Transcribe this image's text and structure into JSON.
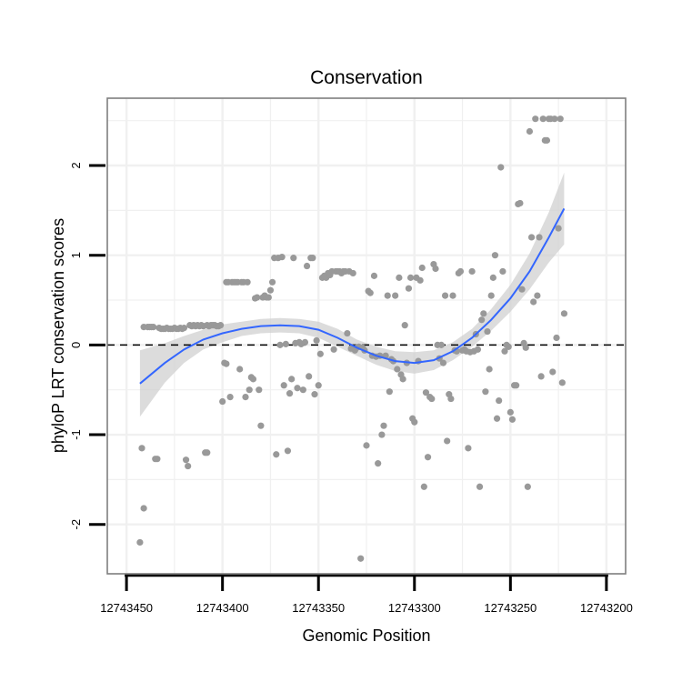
{
  "chart_data": {
    "type": "scatter",
    "title": "Conservation",
    "xlabel": "Genomic Position",
    "ylabel": "phyloP LRT conservation scores",
    "x_reversed": true,
    "xlim": [
      12743460,
      12743190
    ],
    "ylim": [
      -2.55,
      2.75
    ],
    "x_ticks": [
      12743450,
      12743400,
      12743350,
      12743300,
      12743250,
      12743200
    ],
    "x_tick_labels": [
      "12743450",
      "12743400",
      "12743350",
      "12743300",
      "12743250",
      "12743200"
    ],
    "y_ticks": [
      -2,
      -1,
      0,
      1,
      2
    ],
    "y_tick_labels": [
      "-2",
      "-1",
      "0",
      "1",
      "2"
    ],
    "grid": true,
    "reference_line": {
      "y": 0,
      "style": "dashed",
      "color": "#000000"
    },
    "colors": {
      "points": "#999999",
      "smooth": "#3366ff",
      "band": "#d0d0d0",
      "grid": "#f0f0f0",
      "frame": "#7f7f7f"
    },
    "series": [
      {
        "kind": "points",
        "points": [
          [
            12743443,
            -2.2
          ],
          [
            12743442,
            -1.15
          ],
          [
            12743441,
            -1.82
          ],
          [
            12743441,
            0.2
          ],
          [
            12743439,
            0.2
          ],
          [
            12743438,
            0.2
          ],
          [
            12743437,
            0.2
          ],
          [
            12743436,
            0.2
          ],
          [
            12743435,
            -1.27
          ],
          [
            12743434,
            -1.27
          ],
          [
            12743433,
            0.19
          ],
          [
            12743432,
            0.18
          ],
          [
            12743431,
            0.18
          ],
          [
            12743430,
            0.18
          ],
          [
            12743429,
            0.19
          ],
          [
            12743428,
            0.18
          ],
          [
            12743427,
            0.18
          ],
          [
            12743426,
            0.18
          ],
          [
            12743425,
            0.19
          ],
          [
            12743424,
            0.18
          ],
          [
            12743423,
            0.18
          ],
          [
            12743422,
            0.19
          ],
          [
            12743421,
            0.18
          ],
          [
            12743420,
            0.19
          ],
          [
            12743419,
            -1.28
          ],
          [
            12743418,
            -1.35
          ],
          [
            12743417,
            0.22
          ],
          [
            12743416,
            0.21
          ],
          [
            12743415,
            0.22
          ],
          [
            12743414,
            0.21
          ],
          [
            12743413,
            0.22
          ],
          [
            12743412,
            0.21
          ],
          [
            12743411,
            0.22
          ],
          [
            12743410,
            0.21
          ],
          [
            12743409,
            -1.2
          ],
          [
            12743408,
            -1.2
          ],
          [
            12743408,
            0.22
          ],
          [
            12743407,
            0.21
          ],
          [
            12743406,
            0.22
          ],
          [
            12743405,
            0.22
          ],
          [
            12743404,
            0.22
          ],
          [
            12743403,
            0.21
          ],
          [
            12743402,
            0.21
          ],
          [
            12743401,
            0.22
          ],
          [
            12743400,
            -0.63
          ],
          [
            12743399,
            -0.2
          ],
          [
            12743398,
            -0.21
          ],
          [
            12743398,
            0.7
          ],
          [
            12743397,
            0.7
          ],
          [
            12743396,
            -0.58
          ],
          [
            12743395,
            0.7
          ],
          [
            12743394,
            0.7
          ],
          [
            12743393,
            0.7
          ],
          [
            12743392,
            0.7
          ],
          [
            12743391,
            -0.27
          ],
          [
            12743390,
            0.7
          ],
          [
            12743389,
            0.7
          ],
          [
            12743388,
            -0.58
          ],
          [
            12743387,
            0.7
          ],
          [
            12743386,
            -0.5
          ],
          [
            12743385,
            -0.36
          ],
          [
            12743384,
            -0.38
          ],
          [
            12743383,
            0.52
          ],
          [
            12743382,
            0.53
          ],
          [
            12743381,
            -0.5
          ],
          [
            12743380,
            -0.9
          ],
          [
            12743379,
            0.53
          ],
          [
            12743378,
            0.55
          ],
          [
            12743377,
            0.53
          ],
          [
            12743376,
            0.53
          ],
          [
            12743375,
            0.61
          ],
          [
            12743374,
            0.7
          ],
          [
            12743373,
            0.97
          ],
          [
            12743372,
            -1.22
          ],
          [
            12743371,
            0.97
          ],
          [
            12743370,
            0.0
          ],
          [
            12743369,
            0.98
          ],
          [
            12743368,
            -0.45
          ],
          [
            12743367,
            0.01
          ],
          [
            12743366,
            -1.18
          ],
          [
            12743365,
            -0.54
          ],
          [
            12743364,
            -0.38
          ],
          [
            12743363,
            0.97
          ],
          [
            12743362,
            0.02
          ],
          [
            12743361,
            -0.48
          ],
          [
            12743360,
            0.03
          ],
          [
            12743359,
            0.01
          ],
          [
            12743358,
            -0.5
          ],
          [
            12743357,
            0.03
          ],
          [
            12743356,
            0.88
          ],
          [
            12743355,
            -0.35
          ],
          [
            12743354,
            0.97
          ],
          [
            12743353,
            0.97
          ],
          [
            12743352,
            -0.55
          ],
          [
            12743351,
            0.05
          ],
          [
            12743350,
            -0.45
          ],
          [
            12743349,
            -0.1
          ],
          [
            12743348,
            0.75
          ],
          [
            12743347,
            0.77
          ],
          [
            12743346,
            0.75
          ],
          [
            12743345,
            0.8
          ],
          [
            12743344,
            0.78
          ],
          [
            12743343,
            0.82
          ],
          [
            12743342,
            -0.05
          ],
          [
            12743341,
            0.82
          ],
          [
            12743340,
            0.82
          ],
          [
            12743339,
            0.82
          ],
          [
            12743338,
            0.8
          ],
          [
            12743337,
            0.82
          ],
          [
            12743336,
            0.82
          ],
          [
            12743335,
            0.13
          ],
          [
            12743334,
            0.82
          ],
          [
            12743333,
            -0.04
          ],
          [
            12743332,
            0.8
          ],
          [
            12743331,
            -0.06
          ],
          [
            12743330,
            -0.03
          ],
          [
            12743329,
            -0.02
          ],
          [
            12743328,
            -2.38
          ],
          [
            12743327,
            -0.03
          ],
          [
            12743326,
            -0.06
          ],
          [
            12743325,
            -1.12
          ],
          [
            12743324,
            0.6
          ],
          [
            12743323,
            0.58
          ],
          [
            12743322,
            -0.12
          ],
          [
            12743321,
            0.77
          ],
          [
            12743320,
            -0.13
          ],
          [
            12743319,
            -1.32
          ],
          [
            12743318,
            -0.12
          ],
          [
            12743317,
            -1.0
          ],
          [
            12743316,
            -0.9
          ],
          [
            12743315,
            -0.12
          ],
          [
            12743314,
            0.55
          ],
          [
            12743313,
            -0.52
          ],
          [
            12743312,
            -0.16
          ],
          [
            12743311,
            -0.18
          ],
          [
            12743310,
            0.55
          ],
          [
            12743309,
            -0.27
          ],
          [
            12743308,
            0.75
          ],
          [
            12743307,
            -0.33
          ],
          [
            12743306,
            -0.38
          ],
          [
            12743305,
            0.22
          ],
          [
            12743304,
            -0.2
          ],
          [
            12743303,
            0.63
          ],
          [
            12743302,
            0.75
          ],
          [
            12743301,
            -0.82
          ],
          [
            12743300,
            -0.86
          ],
          [
            12743299,
            0.75
          ],
          [
            12743298,
            -0.18
          ],
          [
            12743297,
            0.72
          ],
          [
            12743296,
            0.86
          ],
          [
            12743295,
            -1.58
          ],
          [
            12743294,
            -0.53
          ],
          [
            12743293,
            -1.25
          ],
          [
            12743292,
            -0.58
          ],
          [
            12743291,
            -0.6
          ],
          [
            12743290,
            0.9
          ],
          [
            12743289,
            0.85
          ],
          [
            12743288,
            0.0
          ],
          [
            12743287,
            -0.15
          ],
          [
            12743286,
            0.0
          ],
          [
            12743285,
            -0.2
          ],
          [
            12743284,
            0.55
          ],
          [
            12743283,
            -1.07
          ],
          [
            12743282,
            -0.55
          ],
          [
            12743281,
            -0.6
          ],
          [
            12743280,
            0.55
          ],
          [
            12743279,
            -0.06
          ],
          [
            12743278,
            -0.07
          ],
          [
            12743277,
            0.8
          ],
          [
            12743276,
            0.82
          ],
          [
            12743275,
            -0.06
          ],
          [
            12743274,
            -0.05
          ],
          [
            12743273,
            -0.07
          ],
          [
            12743272,
            -1.15
          ],
          [
            12743271,
            -0.08
          ],
          [
            12743270,
            0.82
          ],
          [
            12743269,
            -0.07
          ],
          [
            12743268,
            0.12
          ],
          [
            12743267,
            -0.05
          ],
          [
            12743266,
            -1.58
          ],
          [
            12743265,
            0.28
          ],
          [
            12743264,
            0.35
          ],
          [
            12743263,
            -0.52
          ],
          [
            12743262,
            0.15
          ],
          [
            12743261,
            -0.27
          ],
          [
            12743260,
            0.55
          ],
          [
            12743259,
            0.75
          ],
          [
            12743258,
            1.0
          ],
          [
            12743257,
            -0.82
          ],
          [
            12743256,
            -0.62
          ],
          [
            12743255,
            1.98
          ],
          [
            12743254,
            0.82
          ],
          [
            12743253,
            -0.07
          ],
          [
            12743252,
            0.0
          ],
          [
            12743251,
            -0.02
          ],
          [
            12743250,
            -0.75
          ],
          [
            12743249,
            -0.83
          ],
          [
            12743248,
            -0.45
          ],
          [
            12743247,
            -0.45
          ],
          [
            12743246,
            1.57
          ],
          [
            12743245,
            1.58
          ],
          [
            12743244,
            0.62
          ],
          [
            12743243,
            0.02
          ],
          [
            12743242,
            -0.03
          ],
          [
            12743241,
            -1.58
          ],
          [
            12743240,
            2.38
          ],
          [
            12743239,
            1.2
          ],
          [
            12743238,
            0.48
          ],
          [
            12743237,
            2.52
          ],
          [
            12743236,
            0.55
          ],
          [
            12743235,
            1.2
          ],
          [
            12743234,
            -0.35
          ],
          [
            12743233,
            2.52
          ],
          [
            12743232,
            2.28
          ],
          [
            12743231,
            2.28
          ],
          [
            12743230,
            2.52
          ],
          [
            12743229,
            2.52
          ],
          [
            12743228,
            -0.3
          ],
          [
            12743227,
            2.52
          ],
          [
            12743226,
            0.08
          ],
          [
            12743225,
            1.3
          ],
          [
            12743224,
            2.52
          ],
          [
            12743223,
            -0.42
          ],
          [
            12743222,
            0.35
          ]
        ]
      },
      {
        "kind": "smooth",
        "x": [
          12743443,
          12743430,
          12743420,
          12743410,
          12743400,
          12743390,
          12743380,
          12743370,
          12743360,
          12743350,
          12743340,
          12743330,
          12743320,
          12743310,
          12743300,
          12743290,
          12743280,
          12743270,
          12743260,
          12743250,
          12743240,
          12743230,
          12743222
        ],
        "y": [
          -0.43,
          -0.2,
          -0.05,
          0.06,
          0.13,
          0.18,
          0.21,
          0.22,
          0.21,
          0.17,
          0.08,
          -0.03,
          -0.12,
          -0.18,
          -0.2,
          -0.17,
          -0.07,
          0.08,
          0.28,
          0.52,
          0.82,
          1.2,
          1.52
        ],
        "lower": [
          -0.8,
          -0.42,
          -0.2,
          -0.05,
          0.03,
          0.1,
          0.13,
          0.14,
          0.13,
          0.08,
          -0.02,
          -0.12,
          -0.22,
          -0.29,
          -0.32,
          -0.28,
          -0.17,
          -0.02,
          0.16,
          0.37,
          0.62,
          0.92,
          1.12
        ],
        "upper": [
          -0.06,
          0.02,
          0.1,
          0.17,
          0.23,
          0.26,
          0.29,
          0.3,
          0.29,
          0.26,
          0.18,
          0.06,
          -0.02,
          -0.07,
          -0.08,
          -0.06,
          0.03,
          0.18,
          0.4,
          0.67,
          1.02,
          1.48,
          1.92
        ]
      }
    ]
  }
}
